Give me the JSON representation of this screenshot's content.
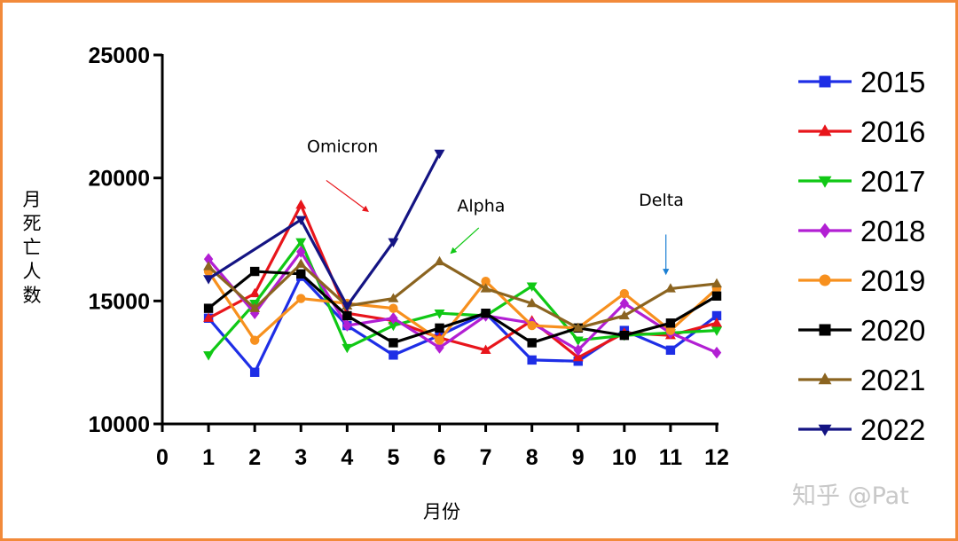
{
  "chart_data": {
    "type": "line",
    "title": "",
    "xlabel": "月份",
    "ylabel": "月死亡人数",
    "xlim": [
      0,
      12
    ],
    "ylim": [
      10000,
      25000
    ],
    "x_ticks": [
      0,
      1,
      2,
      3,
      4,
      5,
      6,
      7,
      8,
      9,
      10,
      11,
      12
    ],
    "y_ticks": [
      10000,
      15000,
      20000,
      25000
    ],
    "legend_position": "right",
    "grid": false,
    "series": [
      {
        "name": "2015",
        "color": "#1E2EE6",
        "marker": "square",
        "x": [
          1,
          2,
          3,
          4,
          5,
          6,
          7,
          8,
          9,
          10,
          11,
          12
        ],
        "values": [
          14300,
          12100,
          16000,
          14000,
          12800,
          13600,
          14500,
          12600,
          12550,
          13800,
          13000,
          14400
        ]
      },
      {
        "name": "2016",
        "color": "#E8151B",
        "marker": "triangle-up",
        "x": [
          1,
          2,
          3,
          4,
          5,
          6,
          7,
          8,
          9,
          10,
          11,
          12
        ],
        "values": [
          14300,
          15300,
          18900,
          14500,
          14200,
          13500,
          13000,
          14200,
          12700,
          13700,
          13600,
          14100
        ]
      },
      {
        "name": "2017",
        "color": "#10C815",
        "marker": "triangle-down",
        "x": [
          1,
          2,
          3,
          4,
          5,
          6,
          7,
          8,
          9,
          10,
          11,
          12
        ],
        "values": [
          12800,
          14900,
          17400,
          13100,
          14000,
          14500,
          14400,
          15600,
          13400,
          13600,
          13700,
          13800
        ]
      },
      {
        "name": "2018",
        "color": "#B21FD3",
        "marker": "diamond",
        "x": [
          1,
          2,
          3,
          4,
          5,
          6,
          7,
          8,
          9,
          10,
          11,
          12
        ],
        "values": [
          16700,
          14500,
          17000,
          14000,
          14300,
          13100,
          14400,
          14100,
          13000,
          14900,
          13700,
          12900
        ]
      },
      {
        "name": "2019",
        "color": "#F7901E",
        "marker": "circle",
        "x": [
          1,
          2,
          3,
          4,
          5,
          6,
          7,
          8,
          9,
          10,
          11,
          12
        ],
        "values": [
          16200,
          13400,
          15100,
          14900,
          14700,
          13400,
          15800,
          14000,
          13900,
          15300,
          13800,
          15500
        ]
      },
      {
        "name": "2020",
        "color": "#000000",
        "marker": "square",
        "x": [
          1,
          2,
          3,
          4,
          5,
          6,
          7,
          8,
          9,
          10,
          11,
          12
        ],
        "values": [
          14700,
          16200,
          16100,
          14400,
          13300,
          13900,
          14500,
          13300,
          13900,
          13600,
          14100,
          15200
        ]
      },
      {
        "name": "2021",
        "color": "#8B6420",
        "marker": "triangle-up",
        "x": [
          1,
          2,
          3,
          4,
          5,
          6,
          7,
          8,
          9,
          10,
          11,
          12
        ],
        "values": [
          16400,
          14700,
          16500,
          14800,
          15100,
          16600,
          15500,
          14900,
          13900,
          14400,
          15500,
          15700
        ]
      },
      {
        "name": "2022",
        "color": "#141483",
        "marker": "triangle-down",
        "x": [
          1,
          3,
          4,
          5,
          6
        ],
        "values": [
          15900,
          18300,
          14800,
          17400,
          21000
        ]
      }
    ],
    "annotations": [
      {
        "text": "Omicron",
        "x": 3.9,
        "y": 21050,
        "color": "#E8151B",
        "arrow_from": [
          3.55,
          19900
        ],
        "arrow_to": [
          4.45,
          18650
        ]
      },
      {
        "text": "Alpha",
        "x": 6.9,
        "y": 18640,
        "color": "#10C815",
        "arrow_from": [
          6.85,
          17970
        ],
        "arrow_to": [
          6.25,
          16950
        ]
      },
      {
        "text": "Delta",
        "x": 10.8,
        "y": 18870,
        "color": "#1B7FD3",
        "arrow_from": [
          10.9,
          17700
        ],
        "arrow_to": [
          10.9,
          16100
        ]
      }
    ]
  },
  "watermark": "知乎 @Pat"
}
